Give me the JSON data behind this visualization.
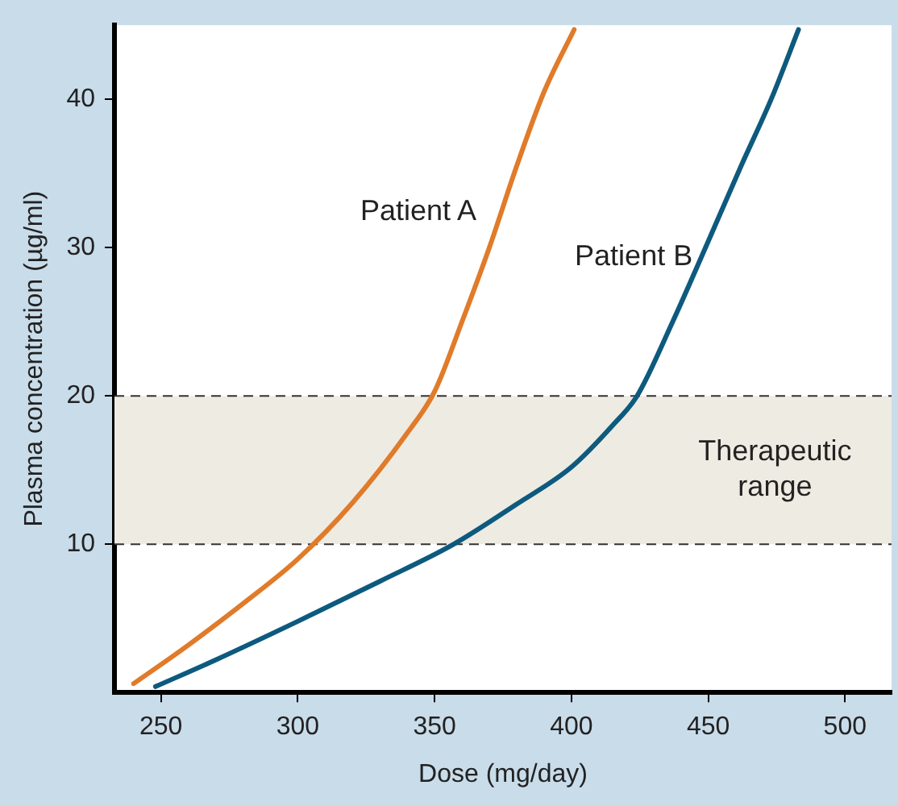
{
  "chart_data": {
    "type": "line",
    "xlabel": "Dose (mg/day)",
    "ylabel": "Plasma concentration (µg/ml)",
    "x": [
      240,
      260,
      280,
      300,
      320,
      340,
      350,
      360,
      370,
      380,
      390,
      401
    ],
    "series": [
      {
        "name": "Patient A",
        "color": "#e07b2a",
        "values": [
          0.6,
          3.2,
          6,
          9,
          12.8,
          17.5,
          20.3,
          25,
          30,
          35.5,
          40.5,
          44.7
        ]
      },
      {
        "name": "Patient B",
        "color": "#0d5a7e",
        "x": [
          248,
          270,
          300,
          330,
          357,
          380,
          400,
          415,
          424,
          437,
          449,
          462,
          473,
          483
        ],
        "values": [
          0.4,
          2.2,
          4.8,
          7.5,
          10,
          12.7,
          15.2,
          18,
          20,
          25,
          30,
          35.5,
          40,
          44.7
        ]
      }
    ],
    "xlim": [
      233,
      517
    ],
    "xticks": [
      250,
      300,
      350,
      400,
      450,
      500
    ],
    "ylim": [
      0,
      45
    ],
    "yticks": [
      10,
      20,
      30,
      40
    ],
    "bands": [
      {
        "axis": "y",
        "from": 10,
        "to": 20,
        "label": "Therapeutic range",
        "color": "#eeebe3"
      }
    ],
    "ref_lines": [
      {
        "axis": "y",
        "value": 10,
        "line_style": "dashed"
      },
      {
        "axis": "y",
        "value": 20,
        "line_style": "dashed"
      }
    ],
    "grid": false,
    "legend": false,
    "marker": "none",
    "line_style": "solid"
  }
}
